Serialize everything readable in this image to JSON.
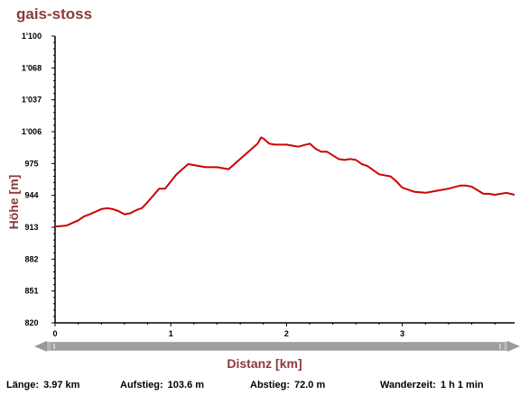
{
  "title": "gais-stoss",
  "colors": {
    "title": "#8b3a3a",
    "line": "#cc0000",
    "axis": "#000000",
    "scrollbar": "#a0a0a0"
  },
  "stats": [
    {
      "label": "Länge:",
      "value": "3.97 km"
    },
    {
      "label": "Aufstieg:",
      "value": "103.6 m"
    },
    {
      "label": "Abstieg:",
      "value": "72.0 m"
    },
    {
      "label": "Wanderzeit:",
      "value": "1 h 1 min"
    }
  ],
  "chart_data": {
    "type": "line",
    "title": "gais-stoss",
    "xlabel": "Distanz [km]",
    "ylabel": "Höhe [m]",
    "xlim": [
      0,
      3.97
    ],
    "ylim": [
      820,
      1100
    ],
    "x_ticks": [
      "0",
      "1",
      "2",
      "3"
    ],
    "y_ticks": [
      "820",
      "851",
      "882",
      "913",
      "944",
      "975",
      "1'006",
      "1'037",
      "1'068",
      "1'100"
    ],
    "grid": false,
    "series": [
      {
        "x": [
          0,
          0.1,
          0.2,
          0.25,
          0.3,
          0.4,
          0.45,
          0.5,
          0.55,
          0.6,
          0.65,
          0.7,
          0.75,
          0.8,
          0.9,
          0.95,
          1.0,
          1.05,
          1.1,
          1.15,
          1.2,
          1.3,
          1.4,
          1.5,
          1.6,
          1.7,
          1.75,
          1.78,
          1.8,
          1.85,
          1.9,
          2.0,
          2.05,
          2.1,
          2.2,
          2.25,
          2.3,
          2.35,
          2.45,
          2.5,
          2.55,
          2.6,
          2.65,
          2.7,
          2.8,
          2.9,
          2.95,
          3.0,
          3.1,
          3.2,
          3.3,
          3.4,
          3.5,
          3.55,
          3.6,
          3.7,
          3.75,
          3.8,
          3.9,
          3.97
        ],
        "y": [
          914,
          915,
          920,
          924,
          926,
          931,
          932,
          931,
          929,
          926,
          927,
          930,
          932,
          938,
          951,
          951,
          958,
          965,
          970,
          975,
          974,
          972,
          972,
          970,
          980,
          990,
          995,
          1001,
          1000,
          995,
          994,
          994,
          993,
          992,
          995,
          990,
          987,
          987,
          980,
          979,
          980,
          979,
          975,
          973,
          965,
          963,
          958,
          952,
          948,
          947,
          949,
          951,
          954,
          954,
          953,
          946,
          946,
          945,
          947,
          945
        ]
      }
    ]
  }
}
